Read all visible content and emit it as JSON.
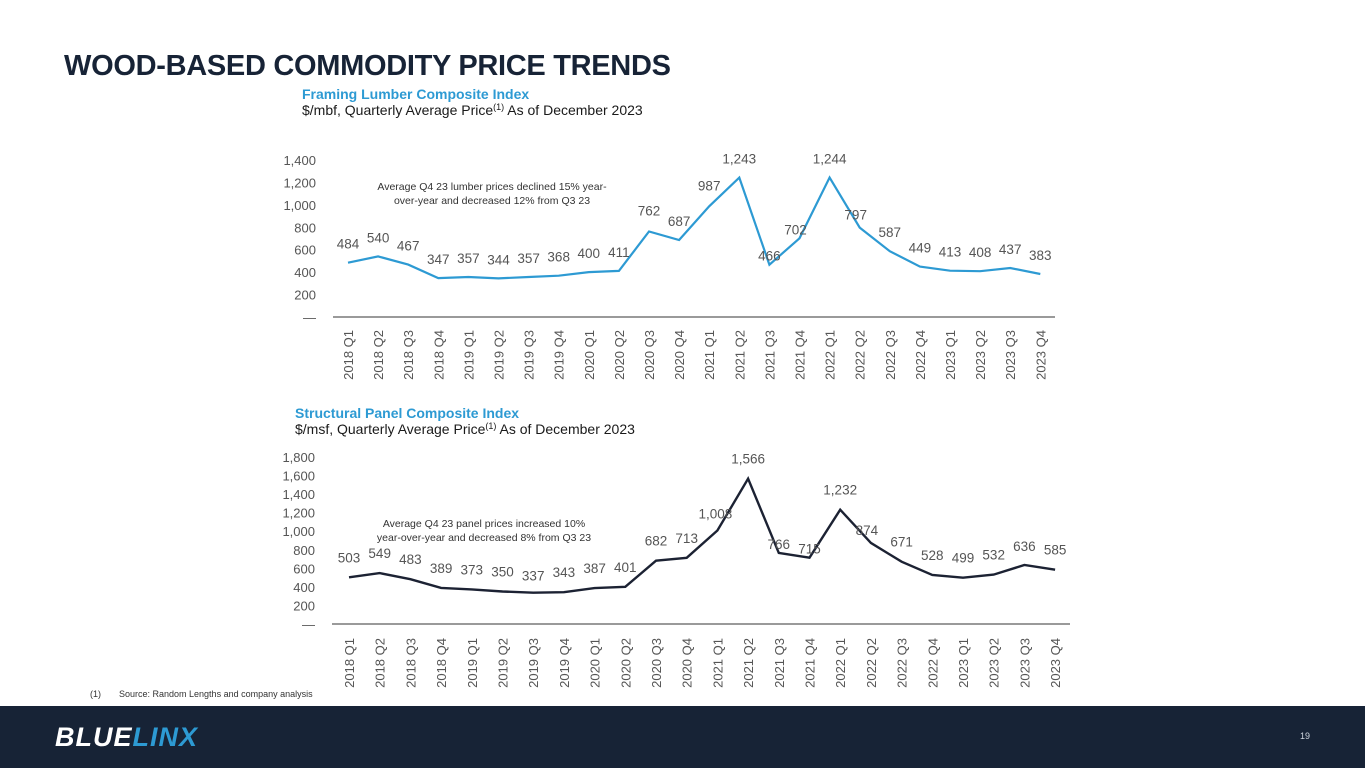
{
  "page": {
    "title": "WOOD-BASED COMMODITY PRICE TRENDS",
    "footnote_marker": "(1)",
    "footnote_text": "Source:  Random Lengths and company analysis",
    "logo_part1": "BLUE",
    "logo_part2": "LINX",
    "page_number": "19"
  },
  "colors": {
    "title": "#172336",
    "accent_blue": "#2d9ad3",
    "panel_line": "#1c2233",
    "footer_bg": "#172336"
  },
  "chart_data": [
    {
      "type": "line",
      "title": "Framing Lumber Composite Index",
      "subtitle_prefix": "$/mbf, Quarterly Average Price",
      "subtitle_sup": "(1)",
      "subtitle_suffix": " As of December 2023",
      "annotation": [
        "Average Q4 23 lumber prices declined 15% year-",
        "over-year and decreased 12% from Q3 23"
      ],
      "categories": [
        "2018 Q1",
        "2018 Q2",
        "2018 Q3",
        "2018 Q4",
        "2019 Q1",
        "2019 Q2",
        "2019 Q3",
        "2019 Q4",
        "2020 Q1",
        "2020 Q2",
        "2020 Q3",
        "2020 Q4",
        "2021 Q1",
        "2021 Q2",
        "2021 Q3",
        "2021 Q4",
        "2022 Q1",
        "2022 Q2",
        "2022 Q3",
        "2022 Q4",
        "2023 Q1",
        "2023 Q2",
        "2023 Q3",
        "2023 Q4"
      ],
      "values": [
        484,
        540,
        467,
        347,
        357,
        344,
        357,
        368,
        400,
        411,
        762,
        687,
        987,
        1243,
        466,
        702,
        1244,
        797,
        587,
        449,
        413,
        408,
        437,
        383
      ],
      "yticks": [
        0,
        200,
        400,
        600,
        800,
        1000,
        1200,
        1400
      ],
      "ytick_labels": [
        "—",
        "200",
        "400",
        "600",
        "800",
        "1,000",
        "1,200",
        "1,400"
      ],
      "ylim": [
        0,
        1400
      ],
      "series_color": "#2d9ad3",
      "grid": false,
      "xlabel": "",
      "ylabel": ""
    },
    {
      "type": "line",
      "title": "Structural Panel Composite Index",
      "subtitle_prefix": "$/msf, Quarterly Average Price",
      "subtitle_sup": "(1)",
      "subtitle_suffix": " As of December 2023",
      "annotation": [
        "Average Q4 23 panel prices increased 10%",
        "year-over-year and decreased 8% from Q3 23"
      ],
      "categories": [
        "2018 Q1",
        "2018 Q2",
        "2018 Q3",
        "2018 Q4",
        "2019 Q1",
        "2019 Q2",
        "2019 Q3",
        "2019 Q4",
        "2020 Q1",
        "2020 Q2",
        "2020 Q3",
        "2020 Q4",
        "2021 Q1",
        "2021 Q2",
        "2021 Q3",
        "2021 Q4",
        "2022 Q1",
        "2022 Q2",
        "2022 Q3",
        "2022 Q4",
        "2023 Q1",
        "2023 Q2",
        "2023 Q3",
        "2023 Q4"
      ],
      "values": [
        503,
        549,
        483,
        389,
        373,
        350,
        337,
        343,
        387,
        401,
        682,
        713,
        1008,
        1566,
        766,
        715,
        1232,
        874,
        671,
        528,
        499,
        532,
        636,
        585
      ],
      "yticks": [
        0,
        200,
        400,
        600,
        800,
        1000,
        1200,
        1400,
        1600,
        1800
      ],
      "ytick_labels": [
        "—",
        "200",
        "400",
        "600",
        "800",
        "1,000",
        "1,200",
        "1,400",
        "1,600",
        "1,800"
      ],
      "ylim": [
        0,
        1800
      ],
      "series_color": "#1c2233",
      "grid": false,
      "xlabel": "",
      "ylabel": ""
    }
  ]
}
